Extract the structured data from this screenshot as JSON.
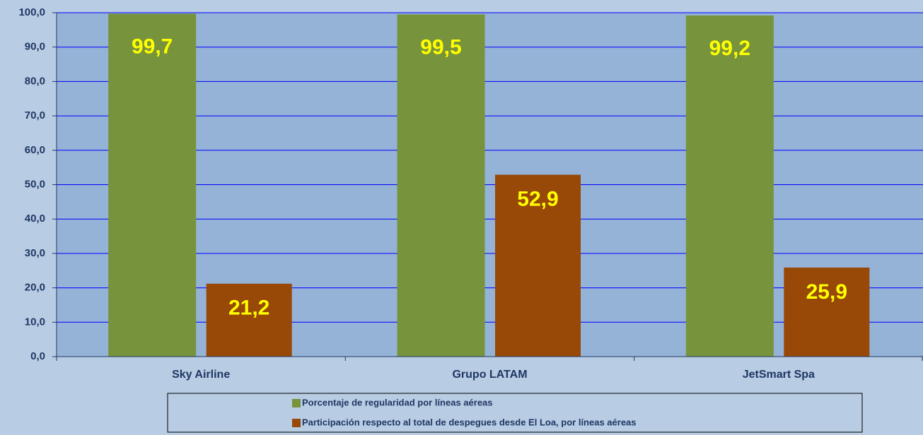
{
  "chart_data": {
    "type": "bar",
    "categories": [
      "Sky Airline",
      "Grupo LATAM",
      "JetSmart Spa"
    ],
    "series": [
      {
        "name": "Porcentaje de regularidad por líneas aéreas",
        "color": "#77933c",
        "values": [
          99.7,
          99.5,
          99.2
        ],
        "value_labels": [
          "99,7",
          "99,5",
          "99,2"
        ]
      },
      {
        "name": "Participación respecto al total de despegues desde El Loa, por líneas aéreas",
        "color": "#984807",
        "values": [
          21.2,
          52.9,
          25.9
        ],
        "value_labels": [
          "21,2",
          "52,9",
          "25,9"
        ]
      }
    ],
    "ylim": [
      0,
      100
    ],
    "yticks": [
      {
        "value": 0,
        "label": "0,0"
      },
      {
        "value": 10,
        "label": "10,0"
      },
      {
        "value": 20,
        "label": "20,0"
      },
      {
        "value": 30,
        "label": "30,0"
      },
      {
        "value": 40,
        "label": "40,0"
      },
      {
        "value": 50,
        "label": "50,0"
      },
      {
        "value": 60,
        "label": "60,0"
      },
      {
        "value": 70,
        "label": "70,0"
      },
      {
        "value": 80,
        "label": "80,0"
      },
      {
        "value": 90,
        "label": "90,0"
      },
      {
        "value": 100,
        "label": "100,0"
      }
    ],
    "grid": true,
    "legend": "bottom"
  }
}
